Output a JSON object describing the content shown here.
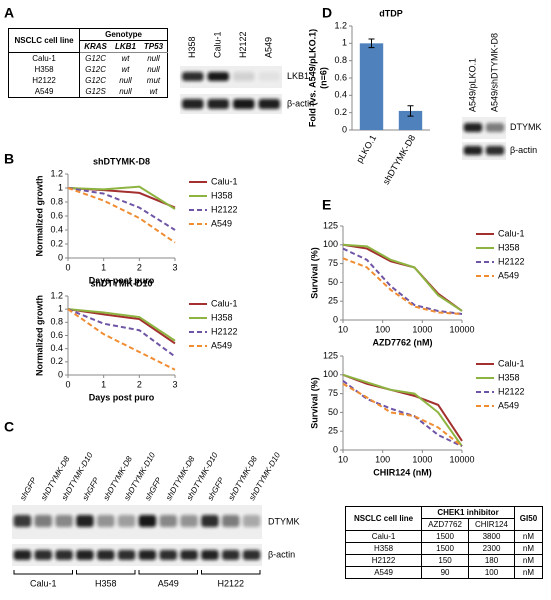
{
  "panel_labels": [
    "A",
    "B",
    "C",
    "D",
    "E"
  ],
  "genotype_table": {
    "header": [
      "NSCLC cell line",
      "Genotype"
    ],
    "genes": [
      "KRAS",
      "LKB1",
      "TP53"
    ],
    "rows": [
      [
        "Calu-1",
        "G12C",
        "wt",
        "null"
      ],
      [
        "H358",
        "G12C",
        "wt",
        "null"
      ],
      [
        "H2122",
        "G12C",
        "null",
        "mut"
      ],
      [
        "A549",
        "G12S",
        "null",
        "wt"
      ]
    ]
  },
  "lkb1_blot": {
    "lanes": [
      "H358",
      "Calu-1",
      "H2122",
      "A549"
    ],
    "bands": [
      "LKB1",
      "β-actin"
    ]
  },
  "dtymk_blot": {
    "lanes": [
      "A549/pLKO.1",
      "A549/shDTYMK-D8"
    ],
    "bands": [
      "DTYMK",
      "β-actin"
    ]
  },
  "knockdown_blot": {
    "lanes": [
      "shGFP",
      "shDTYMK-D8",
      "shDTYMK-D10",
      "shGFP",
      "shDTYMK-D8",
      "shDTYMK-D10",
      "shGFP",
      "shDTYMK-D8",
      "shDTYMK-D10",
      "shGFP",
      "shDTYMK-D8",
      "shDTYMK-D10"
    ],
    "groups": [
      "Calu-1",
      "H358",
      "A549",
      "H2122"
    ],
    "bands": [
      "DTYMK",
      "β-actin"
    ]
  },
  "gi50_table": {
    "header": [
      "NSCLC cell line",
      "CHEK1 inhibitor",
      "GI50"
    ],
    "drugs": [
      "AZD7762",
      "CHIR124"
    ],
    "rows": [
      [
        "Calu-1",
        1500,
        3800,
        "nM"
      ],
      [
        "H358",
        1500,
        2300,
        "nM"
      ],
      [
        "H2122",
        150,
        180,
        "nM"
      ],
      [
        "A549",
        90,
        100,
        "nM"
      ]
    ]
  },
  "chart_data": [
    {
      "type": "bar",
      "title": "dTDP",
      "y_label": [
        "Fold (vs. A549/pLKO.1)",
        "(n=6)"
      ],
      "categories": [
        "pLKO.1",
        "shDTYMK-D8"
      ],
      "values": [
        1.0,
        0.22
      ],
      "errors": [
        0.05,
        0.06
      ],
      "color": "#4f81bd",
      "ylim": [
        0,
        1.2
      ],
      "yticks": [
        0,
        0.2,
        0.4,
        0.6,
        0.8,
        1,
        1.2
      ]
    },
    {
      "type": "line",
      "title": "shDTYMK-D8",
      "x_label": "Days post puro",
      "y_label": [
        "Normalized growth"
      ],
      "x": [
        0,
        1,
        2,
        3
      ],
      "xlim": [
        0,
        3
      ],
      "xticks": [
        0,
        1,
        2,
        3
      ],
      "ylim": [
        0,
        1.2
      ],
      "yticks": [
        0,
        0.2,
        0.4,
        0.6,
        0.8,
        1,
        1.2
      ],
      "log_x": false,
      "series": [
        {
          "name": "Calu-1",
          "color": "#a3302e",
          "dashed": false,
          "values": [
            1,
            0.97,
            0.93,
            0.72
          ]
        },
        {
          "name": "H358",
          "color": "#8db340",
          "dashed": false,
          "values": [
            1,
            0.98,
            1.02,
            0.7
          ]
        },
        {
          "name": "H2122",
          "color": "#6f55a5",
          "dashed": true,
          "values": [
            1,
            0.92,
            0.72,
            0.4
          ]
        },
        {
          "name": "A549",
          "color": "#f08c32",
          "dashed": true,
          "values": [
            1,
            0.82,
            0.57,
            0.22
          ]
        }
      ]
    },
    {
      "type": "line",
      "title": "shDTYMK-D10",
      "x_label": "Days post puro",
      "y_label": [
        "Normalized growth"
      ],
      "x": [
        0,
        1,
        2,
        3
      ],
      "xlim": [
        0,
        3
      ],
      "xticks": [
        0,
        1,
        2,
        3
      ],
      "ylim": [
        0,
        1.2
      ],
      "yticks": [
        0,
        0.2,
        0.4,
        0.6,
        0.8,
        1,
        1.2
      ],
      "log_x": false,
      "series": [
        {
          "name": "Calu-1",
          "color": "#a3302e",
          "dashed": false,
          "values": [
            1,
            0.92,
            0.85,
            0.48
          ]
        },
        {
          "name": "H358",
          "color": "#8db340",
          "dashed": false,
          "values": [
            1,
            0.95,
            0.88,
            0.52
          ]
        },
        {
          "name": "H2122",
          "color": "#6f55a5",
          "dashed": true,
          "values": [
            1,
            0.78,
            0.68,
            0.28
          ]
        },
        {
          "name": "A549",
          "color": "#f08c32",
          "dashed": true,
          "values": [
            1,
            0.62,
            0.35,
            0.08
          ]
        }
      ]
    },
    {
      "type": "line",
      "x_label": "AZD7762 (nM)",
      "y_label": [
        "Survival (%)"
      ],
      "x": [
        10,
        40,
        160,
        630,
        2500,
        10000
      ],
      "xlim": [
        10,
        10000
      ],
      "xticks": [
        10,
        100,
        1000,
        10000
      ],
      "ylim": [
        0,
        125
      ],
      "yticks": [
        0,
        25,
        50,
        75,
        100,
        125
      ],
      "log_x": true,
      "series": [
        {
          "name": "Calu-1",
          "color": "#a3302e",
          "dashed": false,
          "values": [
            100,
            95,
            78,
            70,
            35,
            12
          ]
        },
        {
          "name": "H358",
          "color": "#8db340",
          "dashed": false,
          "values": [
            100,
            98,
            80,
            70,
            33,
            12
          ]
        },
        {
          "name": "H2122",
          "color": "#6f55a5",
          "dashed": true,
          "values": [
            95,
            80,
            45,
            20,
            12,
            8
          ]
        },
        {
          "name": "A549",
          "color": "#f08c32",
          "dashed": true,
          "values": [
            82,
            70,
            40,
            18,
            10,
            8
          ]
        }
      ]
    },
    {
      "type": "line",
      "x_label": "CHIR124 (nM)",
      "y_label": [
        "Survival (%)"
      ],
      "x": [
        10,
        40,
        160,
        630,
        2500,
        10000
      ],
      "xlim": [
        10,
        10000
      ],
      "xticks": [
        10,
        100,
        1000,
        10000
      ],
      "ylim": [
        0,
        125
      ],
      "yticks": [
        0,
        25,
        50,
        75,
        100,
        125
      ],
      "log_x": true,
      "series": [
        {
          "name": "Calu-1",
          "color": "#a3302e",
          "dashed": false,
          "values": [
            100,
            88,
            80,
            72,
            60,
            12
          ]
        },
        {
          "name": "H358",
          "color": "#8db340",
          "dashed": false,
          "values": [
            100,
            90,
            80,
            75,
            50,
            5
          ]
        },
        {
          "name": "H2122",
          "color": "#6f55a5",
          "dashed": true,
          "values": [
            92,
            68,
            55,
            45,
            20,
            5
          ]
        },
        {
          "name": "A549",
          "color": "#f08c32",
          "dashed": true,
          "values": [
            88,
            70,
            50,
            45,
            30,
            5
          ]
        }
      ]
    }
  ]
}
